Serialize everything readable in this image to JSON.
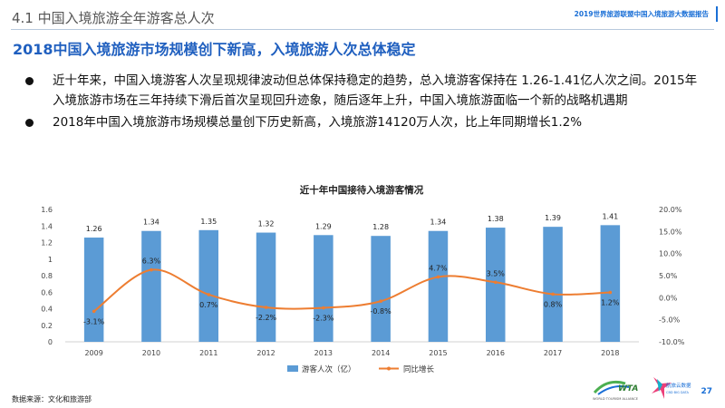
{
  "header": {
    "section_title": "4.1 中国入境旅游全年游客总人次",
    "report_title": "2019世界旅游联盟中国入境旅游大数据报告"
  },
  "headline": "2018中国入境旅游市场规模创下新高，入境旅游人次总体稳定",
  "bullets": [
    "近十年来，中国入境游客人次呈现规律波动但总体保持稳定的趋势，总入境游客保持在 1.26-1.41亿人次之间。2015年入境旅游市场在三年持续下滑后首次呈现回升迹象，随后逐年上升，中国入境旅游面临一个新的战略机遇期",
    "2018年中国入境旅游市场规模总量创下历史新高，入境旅游14120万人次，比上年同期增长1.2%"
  ],
  "footer": {
    "source": "数据来源：文化和旅游部",
    "page_number": "27"
  },
  "logos": {
    "wta_text": "WTA",
    "wta_caption": "WORLD TOURISM ALLIANCE",
    "bigdata_text": "航旅云数据",
    "bigdata_caption": "CBD BIG DATA"
  },
  "chart_data": {
    "type": "bar",
    "title": "近十年中国接待入境游客情况",
    "categories": [
      "2009",
      "2010",
      "2011",
      "2012",
      "2013",
      "2014",
      "2015",
      "2016",
      "2017",
      "2018"
    ],
    "series": [
      {
        "name": "游客人次（亿）",
        "type": "bar",
        "axis": "left",
        "color": "#5b9bd5",
        "values": [
          1.26,
          1.34,
          1.35,
          1.32,
          1.29,
          1.28,
          1.34,
          1.38,
          1.39,
          1.41
        ],
        "labels": [
          "1.26",
          "1.34",
          "1.35",
          "1.32",
          "1.29",
          "1.28",
          "1.34",
          "1.38",
          "1.39",
          "1.41"
        ]
      },
      {
        "name": "同比增长",
        "type": "line",
        "axis": "right",
        "color": "#ed7d31",
        "values": [
          -3.1,
          6.3,
          0.7,
          -2.2,
          -2.3,
          -0.8,
          4.7,
          3.5,
          0.8,
          1.2
        ],
        "labels": [
          "-3.1%",
          "6.3%",
          "0.7%",
          "-2.2%",
          "-2.3%",
          "-0.8%",
          "4.7%",
          "3.5%",
          "0.8%",
          "1.2%"
        ]
      }
    ],
    "y_left": {
      "min": 0,
      "max": 1.6,
      "ticks": [
        "0",
        "0.2",
        "0.4",
        "0.6",
        "0.8",
        "1",
        "1.2",
        "1.4",
        "1.6"
      ]
    },
    "y_right": {
      "min": -10,
      "max": 20,
      "ticks": [
        "-10.0%",
        "-5.0%",
        "0.0%",
        "5.0%",
        "10.0%",
        "15.0%",
        "20.0%"
      ]
    },
    "grid": false,
    "legend": "bottom",
    "smooth": true
  }
}
